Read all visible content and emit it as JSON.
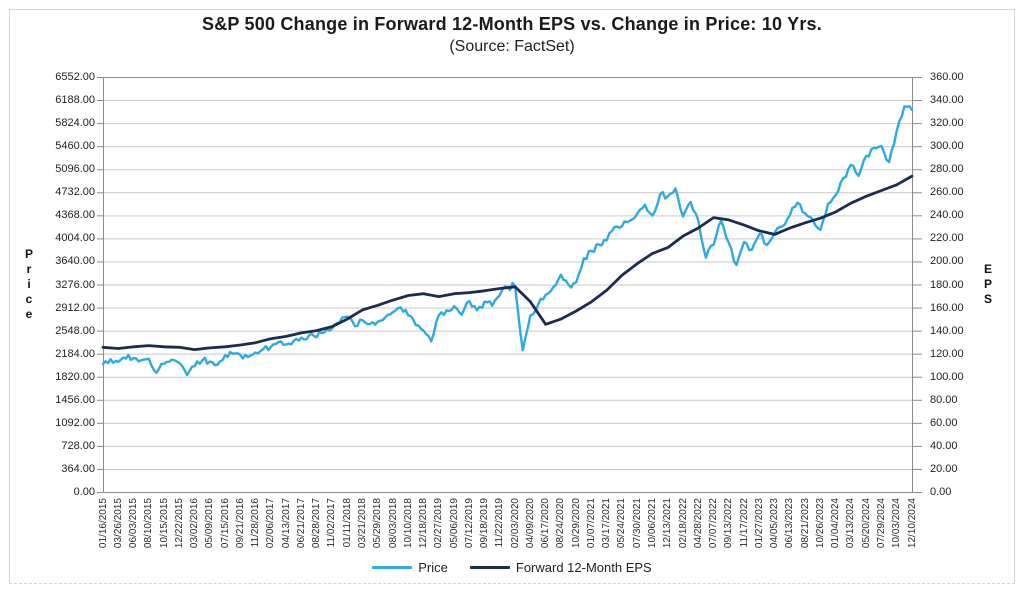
{
  "header": {
    "title": "S&P 500 Change in Forward 12-Month EPS vs. Change in Price: 10 Yrs.",
    "subtitle": "(Source: FactSet)"
  },
  "chart_data": {
    "type": "line",
    "title": "S&P 500 Change in Forward 12-Month EPS vs. Change in Price: 10 Yrs.",
    "subtitle": "(Source: FactSet)",
    "grid": "horizontal-only",
    "legend_position": "bottom",
    "y_left": {
      "label": "Price",
      "min": 0,
      "max": 6552,
      "tick_step": 364,
      "tick_labels": [
        "6552.00",
        "6188.00",
        "5824.00",
        "5460.00",
        "5096.00",
        "4732.00",
        "4368.00",
        "4004.00",
        "3640.00",
        "3276.00",
        "2912.00",
        "2548.00",
        "2184.00",
        "1820.00",
        "1456.00",
        "1092.00",
        "728.00",
        "364.00",
        "0.00"
      ]
    },
    "y_right": {
      "label": "EPS",
      "min": 0,
      "max": 360,
      "tick_step": 20,
      "tick_labels": [
        "360.00",
        "340.00",
        "320.00",
        "300.00",
        "280.00",
        "260.00",
        "240.00",
        "220.00",
        "200.00",
        "180.00",
        "160.00",
        "140.00",
        "120.00",
        "100.00",
        "80.00",
        "60.00",
        "40.00",
        "20.00",
        "0.00"
      ]
    },
    "x_tick_labels": [
      "01/16/2015",
      "03/26/2015",
      "06/03/2015",
      "08/10/2015",
      "10/15/2015",
      "12/22/2015",
      "03/02/2016",
      "05/09/2016",
      "07/15/2016",
      "09/21/2016",
      "11/28/2016",
      "02/06/2017",
      "04/13/2017",
      "06/21/2017",
      "08/28/2017",
      "11/02/2017",
      "01/11/2018",
      "03/21/2018",
      "05/29/2018",
      "08/03/2018",
      "10/10/2018",
      "12/18/2018",
      "02/27/2019",
      "05/06/2019",
      "07/12/2019",
      "09/18/2019",
      "11/22/2019",
      "02/03/2020",
      "04/09/2020",
      "06/17/2020",
      "08/24/2020",
      "10/29/2020",
      "01/07/2021",
      "03/17/2021",
      "05/24/2021",
      "07/30/2021",
      "10/06/2021",
      "12/13/2021",
      "02/18/2022",
      "04/28/2022",
      "07/07/2022",
      "09/13/2022",
      "11/17/2022",
      "01/27/2023",
      "04/05/2023",
      "06/13/2023",
      "08/21/2023",
      "10/26/2023",
      "01/04/2024",
      "03/13/2024",
      "05/20/2024",
      "07/29/2024",
      "10/03/2024",
      "12/10/2024"
    ],
    "series": [
      {
        "name": "Price",
        "axis": "left",
        "color": "#2FA9E0",
        "points_per_tick": 2,
        "values": [
          2019,
          2097,
          2056,
          2108,
          2114,
          2077,
          2104,
          1880,
          2024,
          2089,
          2039,
          1845,
          1986,
          2073,
          2058,
          2010,
          2162,
          2184,
          2163,
          2130,
          2202,
          2258,
          2293,
          2368,
          2329,
          2390,
          2436,
          2473,
          2444,
          2519,
          2580,
          2673,
          2768,
          2620,
          2712,
          2654,
          2690,
          2760,
          2840,
          2914,
          2785,
          2633,
          2546,
          2380,
          2792,
          2867,
          2932,
          2800,
          3014,
          2870,
          3007,
          2940,
          3110,
          3235,
          3249,
          2237,
          2790,
          2955,
          3113,
          3235,
          3431,
          3270,
          3310,
          3690,
          3804,
          3906,
          3974,
          4181,
          4197,
          4280,
          4395,
          4537,
          4364,
          4700,
          4669,
          4793,
          4349,
          4580,
          4287,
          3700,
          3903,
          4280,
          3933,
          3583,
          3947,
          3820,
          4071,
          3900,
          4090,
          4193,
          4369,
          4566,
          4400,
          4300,
          4137,
          4550,
          4689,
          4958,
          5165,
          4990,
          5308,
          5433,
          5464,
          5210,
          5700,
          6086,
          6034
        ]
      },
      {
        "name": "Forward 12-Month EPS",
        "axis": "right",
        "color": "#1B2C50",
        "points_per_tick": 1,
        "values": [
          125.5,
          124.5,
          126,
          127,
          126,
          125.5,
          123.5,
          125,
          126,
          127.5,
          129.5,
          133,
          135,
          138,
          140,
          143.5,
          150,
          158,
          162,
          166.5,
          170.5,
          172,
          169.5,
          172,
          173,
          174.5,
          176.5,
          178,
          165,
          145.5,
          150,
          157,
          165,
          175,
          188,
          198,
          207,
          212,
          222,
          229,
          238,
          236,
          231.5,
          226.5,
          223.5,
          229,
          233.5,
          237.5,
          243,
          250.5,
          256.5,
          261.5,
          266.5,
          274
        ]
      }
    ]
  },
  "legend": {
    "items": [
      {
        "label": "Price",
        "color": "#2FA9E0"
      },
      {
        "label": "Forward 12-Month EPS",
        "color": "#1B2C50"
      }
    ]
  },
  "style": {
    "gridline_color": "#c9c9c9",
    "axis_color": "#8c8c8c"
  }
}
